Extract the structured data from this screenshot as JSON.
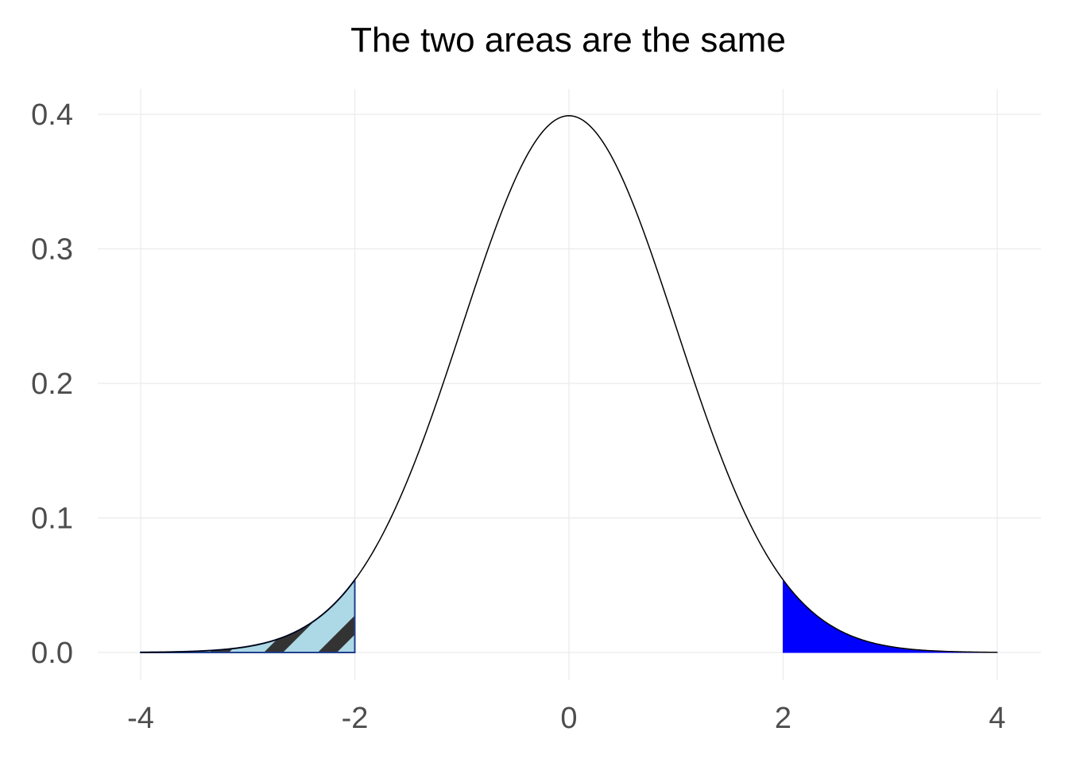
{
  "chart_data": {
    "type": "area",
    "title": "The two areas are the same",
    "xlabel": "",
    "ylabel": "",
    "xlim": [
      -4,
      4
    ],
    "ylim": [
      0,
      0.4
    ],
    "x_ticks": [
      -4,
      -2,
      0,
      2,
      4
    ],
    "x_tick_labels": [
      "-4",
      "-2",
      "0",
      "2",
      "4"
    ],
    "y_ticks": [
      0.0,
      0.1,
      0.2,
      0.3,
      0.4
    ],
    "y_tick_labels": [
      "0.0",
      "0.1",
      "0.2",
      "0.3",
      "0.4"
    ],
    "grid": true,
    "legend": "none",
    "series": [
      {
        "curve": "standard normal density",
        "x_range": [
          -4,
          4
        ],
        "color": "#000000",
        "points": [
          [
            -4.0,
            0.0001
          ],
          [
            -3.5,
            0.0009
          ],
          [
            -3.0,
            0.0044
          ],
          [
            -2.5,
            0.0175
          ],
          [
            -2.0,
            0.054
          ],
          [
            -1.5,
            0.1295
          ],
          [
            -1.0,
            0.242
          ],
          [
            -0.5,
            0.3521
          ],
          [
            0.0,
            0.3989
          ],
          [
            0.5,
            0.3521
          ],
          [
            1.0,
            0.242
          ],
          [
            1.5,
            0.1295
          ],
          [
            2.0,
            0.054
          ],
          [
            2.5,
            0.0175
          ],
          [
            3.0,
            0.0044
          ],
          [
            3.5,
            0.0009
          ],
          [
            4.0,
            0.0001
          ]
        ]
      }
    ],
    "shaded_areas": [
      {
        "from": -4,
        "to": -2,
        "fill": "#add8e6",
        "outline": "#1f3f8f",
        "pattern": "stripe",
        "pattern_color": "#333333"
      },
      {
        "from": 2,
        "to": 4,
        "fill": "#0000ff",
        "outline": "#0000ff",
        "pattern": "none"
      }
    ],
    "colors": {
      "grid": "#ebebeb",
      "axis_text": "#4d4d4d",
      "curve": "#000000"
    }
  }
}
